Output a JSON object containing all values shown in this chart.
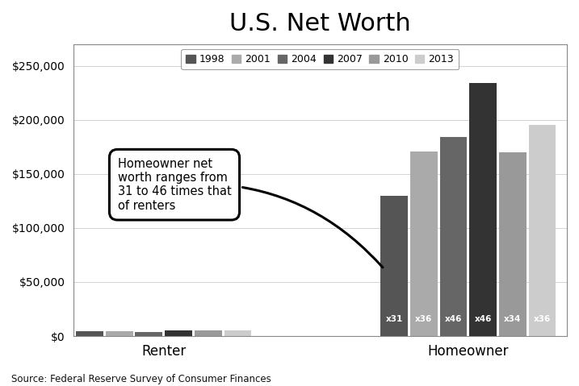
{
  "title": "U.S. Net Worth",
  "years": [
    "1998",
    "2001",
    "2004",
    "2007",
    "2010",
    "2013"
  ],
  "categories": [
    "Renter",
    "Homeowner"
  ],
  "renter_values": [
    4200,
    4700,
    4000,
    5100,
    5000,
    5400
  ],
  "homeowner_values": [
    130000,
    171000,
    184000,
    234000,
    170000,
    195000
  ],
  "multipliers": [
    "x31",
    "x36",
    "x46",
    "x46",
    "x34",
    "x36"
  ],
  "bar_colors": [
    "#555555",
    "#aaaaaa",
    "#666666",
    "#333333",
    "#999999",
    "#cccccc"
  ],
  "ylim": [
    0,
    270000
  ],
  "yticks": [
    0,
    50000,
    100000,
    150000,
    200000,
    250000
  ],
  "source_text": "Source: Federal Reserve Survey of Consumer Finances",
  "annotation_text": "Homeowner net\nworth ranges from\n31 to 46 times that\nof renters",
  "background_color": "#ffffff"
}
